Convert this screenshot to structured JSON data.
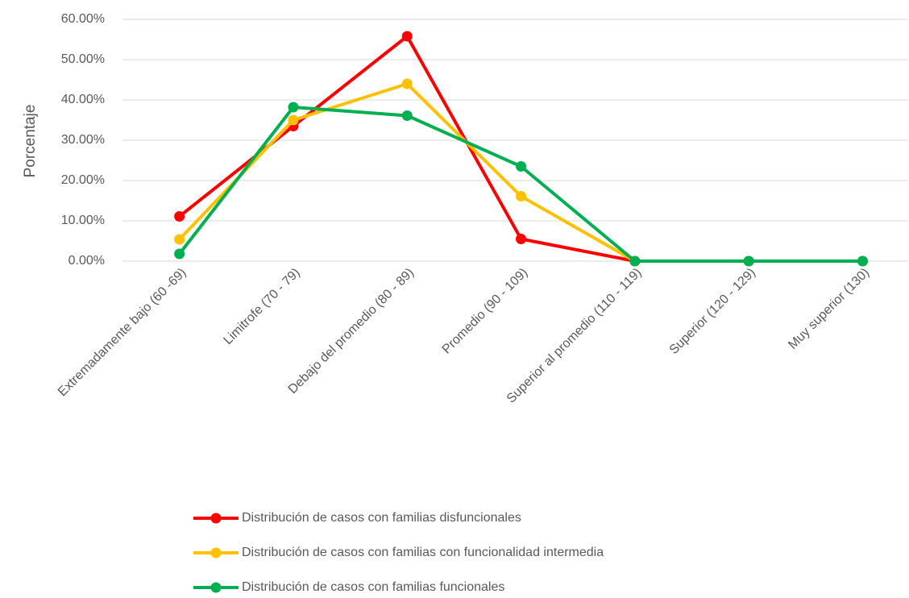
{
  "chart_data": {
    "type": "line",
    "y_label": "Porcentaje",
    "categories": [
      "Extremadamente bajo (60 -69)",
      "Limitrofe (70 - 79)",
      "Debajo del promedio (80 - 89)",
      "Promedio (90 - 109)",
      "Superior al promedio  (110 - 119)",
      "Superior (120 - 129)",
      "Muy superior (130)"
    ],
    "series": [
      {
        "name": "Distribución de casos  con familias disfuncionales",
        "color": "#ff0000",
        "values": [
          11.1,
          33.5,
          55.8,
          5.5,
          0,
          0,
          0
        ]
      },
      {
        "name": "Distribución de casos con familias con  funcionalidad intermedia",
        "color": "#ffc000",
        "values": [
          5.4,
          35,
          44.0,
          16.1,
          0,
          0,
          0
        ]
      },
      {
        "name": "Distribución de casos con familias funcionales",
        "color": "#00b050",
        "values": [
          1.8,
          38.2,
          36.1,
          23.5,
          0,
          0,
          0
        ]
      }
    ],
    "ylim": [
      0,
      60
    ],
    "yticks": [
      {
        "value": 0,
        "label": "0.00%"
      },
      {
        "value": 10,
        "label": "10.00%"
      },
      {
        "value": 20,
        "label": "20.00%"
      },
      {
        "value": 30,
        "label": "30.00%"
      },
      {
        "value": 40,
        "label": "40.00%"
      },
      {
        "value": 50,
        "label": "50.00%"
      },
      {
        "value": 60,
        "label": "60.00%"
      }
    ],
    "grid": true,
    "legend": "bottom"
  }
}
